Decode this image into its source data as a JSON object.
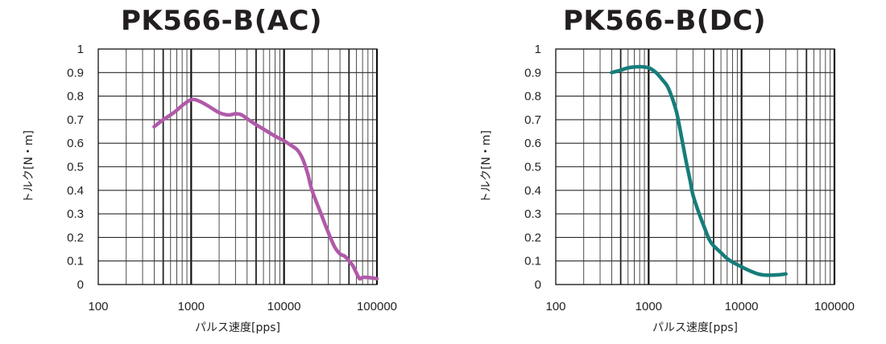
{
  "chart_data": [
    {
      "type": "line",
      "title": "PK566-B(AC)",
      "xlabel": "パルス速度[pps]",
      "ylabel": "トルク[N・m]",
      "x_scale": "log",
      "xlim": [
        100,
        100000
      ],
      "ylim": [
        0,
        1
      ],
      "x_ticks": [
        "100",
        "1000",
        "10000",
        "100000"
      ],
      "y_ticks": [
        "0",
        "0.1",
        "0.2",
        "0.3",
        "0.4",
        "0.5",
        "0.6",
        "0.7",
        "0.8",
        "0.9",
        "1"
      ],
      "grid": true,
      "series": [
        {
          "color": "#b05aa9",
          "points": [
            [
              400,
              0.67
            ],
            [
              500,
              0.7
            ],
            [
              600,
              0.72
            ],
            [
              700,
              0.74
            ],
            [
              800,
              0.76
            ],
            [
              1000,
              0.785
            ],
            [
              1200,
              0.78
            ],
            [
              1500,
              0.76
            ],
            [
              2000,
              0.73
            ],
            [
              2500,
              0.72
            ],
            [
              3000,
              0.725
            ],
            [
              3500,
              0.72
            ],
            [
              4500,
              0.69
            ],
            [
              6000,
              0.66
            ],
            [
              8000,
              0.63
            ],
            [
              10000,
              0.61
            ],
            [
              12000,
              0.59
            ],
            [
              14000,
              0.57
            ],
            [
              16000,
              0.53
            ],
            [
              18000,
              0.47
            ],
            [
              20000,
              0.4
            ],
            [
              25000,
              0.3
            ],
            [
              30000,
              0.22
            ],
            [
              35000,
              0.16
            ],
            [
              40000,
              0.13
            ],
            [
              45000,
              0.12
            ],
            [
              50000,
              0.1
            ],
            [
              55000,
              0.08
            ],
            [
              60000,
              0.05
            ],
            [
              65000,
              0.025
            ],
            [
              70000,
              0.03
            ],
            [
              80000,
              0.03
            ],
            [
              100000,
              0.025
            ]
          ]
        }
      ]
    },
    {
      "type": "line",
      "title": "PK566-B(DC)",
      "xlabel": "パルス速度[pps]",
      "ylabel": "トルク[N・m]",
      "x_scale": "log",
      "xlim": [
        100,
        100000
      ],
      "ylim": [
        0,
        1
      ],
      "x_ticks": [
        "100",
        "1000",
        "10000",
        "100000"
      ],
      "y_ticks": [
        "0",
        "0.1",
        "0.2",
        "0.3",
        "0.4",
        "0.5",
        "0.6",
        "0.7",
        "0.8",
        "0.9",
        "1"
      ],
      "grid": true,
      "series": [
        {
          "color": "#167d7a",
          "points": [
            [
              400,
              0.9
            ],
            [
              500,
              0.91
            ],
            [
              600,
              0.92
            ],
            [
              800,
              0.925
            ],
            [
              1000,
              0.92
            ],
            [
              1200,
              0.9
            ],
            [
              1400,
              0.87
            ],
            [
              1600,
              0.84
            ],
            [
              1800,
              0.79
            ],
            [
              2000,
              0.73
            ],
            [
              2200,
              0.65
            ],
            [
              2400,
              0.57
            ],
            [
              2600,
              0.5
            ],
            [
              2800,
              0.44
            ],
            [
              3000,
              0.38
            ],
            [
              3500,
              0.3
            ],
            [
              4000,
              0.24
            ],
            [
              4500,
              0.19
            ],
            [
              5000,
              0.165
            ],
            [
              6000,
              0.135
            ],
            [
              7000,
              0.11
            ],
            [
              8000,
              0.095
            ],
            [
              10000,
              0.075
            ],
            [
              12000,
              0.06
            ],
            [
              15000,
              0.045
            ],
            [
              18000,
              0.04
            ],
            [
              22000,
              0.04
            ],
            [
              26000,
              0.042
            ],
            [
              30000,
              0.045
            ]
          ]
        }
      ]
    }
  ]
}
